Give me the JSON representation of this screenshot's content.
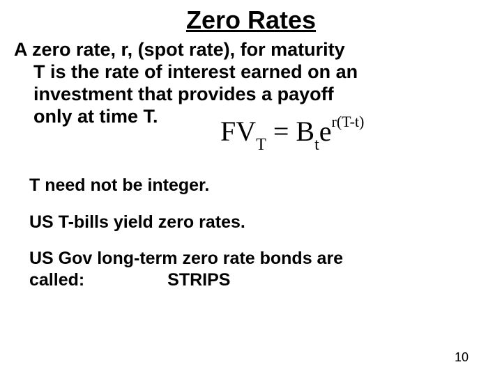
{
  "title": "Zero Rates",
  "paragraph_line1": "A zero rate, r,  (spot rate), for maturity",
  "paragraph_line2": "T  is the rate of interest earned on an",
  "paragraph_line3": "investment that provides a payoff",
  "paragraph_line4": "only at time T.",
  "formula": {
    "fv": "FV",
    "fv_sub": "T",
    "eq": " = ",
    "b": "B",
    "b_sub": "t",
    "e": "e",
    "exp": "r(T-t)"
  },
  "line_integer": "T need not be integer.",
  "line_tbills": "US T-bills yield zero rates.",
  "line_gov1": "US Gov long-term zero rate bonds are",
  "line_gov2_called": "called:",
  "line_gov2_strips": "STRIPS",
  "page_number": "10",
  "style": {
    "background_color": "#ffffff",
    "text_color": "#000000",
    "title_fontsize": 36,
    "body_fontsize": 27,
    "line_fontsize": 25,
    "formula_fontsize": 40,
    "pagenum_fontsize": 18,
    "font_family_body": "Verdana",
    "font_family_formula": "Times New Roman",
    "font_weight": 700
  }
}
